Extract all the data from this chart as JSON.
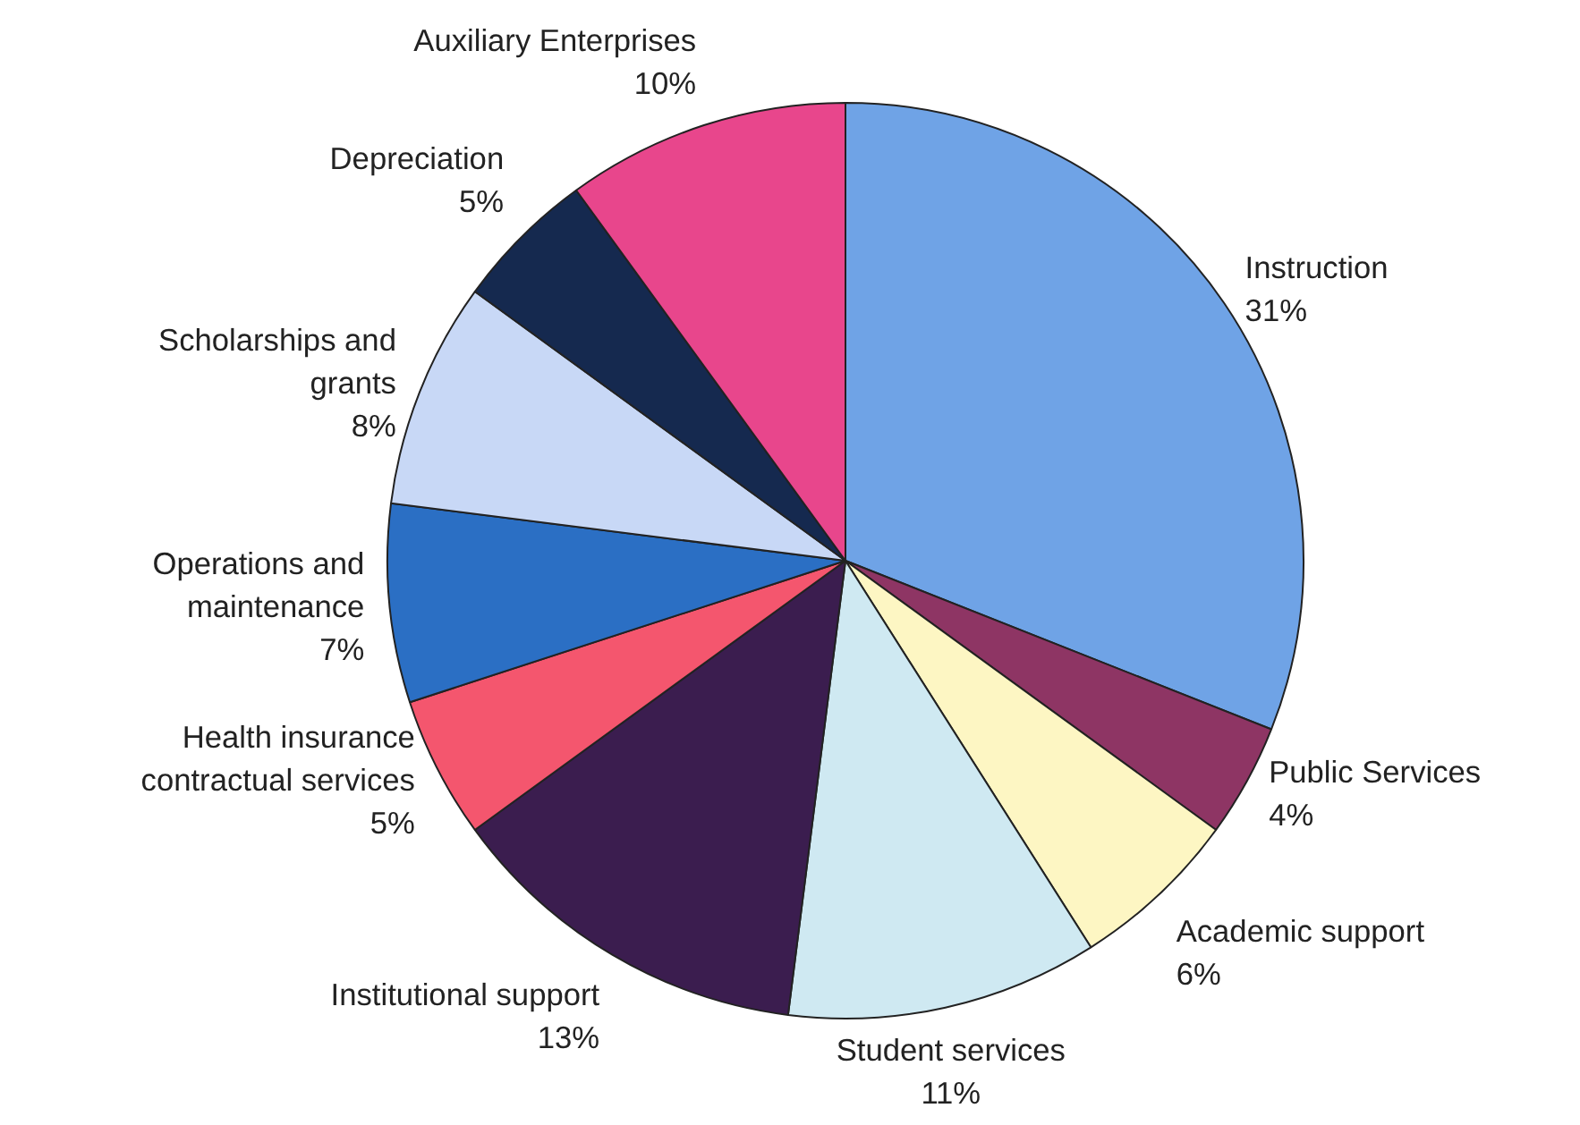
{
  "chart_data": {
    "type": "pie",
    "categories": [
      "Instruction",
      "Public Services",
      "Academic support",
      "Student services",
      "Institutional support",
      "Health insurance\ncontractual services",
      "Operations and\nmaintenance",
      "Scholarships and\ngrants",
      "Depreciation",
      "Auxiliary Enterprises"
    ],
    "values": [
      31,
      4,
      6,
      11,
      13,
      5,
      7,
      8,
      5,
      10
    ],
    "value_labels": [
      "31%",
      "4%",
      "6%",
      "11%",
      "13%",
      "5%",
      "7%",
      "8%",
      "5%",
      "10%"
    ],
    "colors": [
      "#6fa3e6",
      "#8e3564",
      "#fdf6c3",
      "#cfe9f2",
      "#3b1d4f",
      "#f4566e",
      "#2b6fc4",
      "#c8d8f6",
      "#15294f",
      "#e8468c"
    ]
  }
}
